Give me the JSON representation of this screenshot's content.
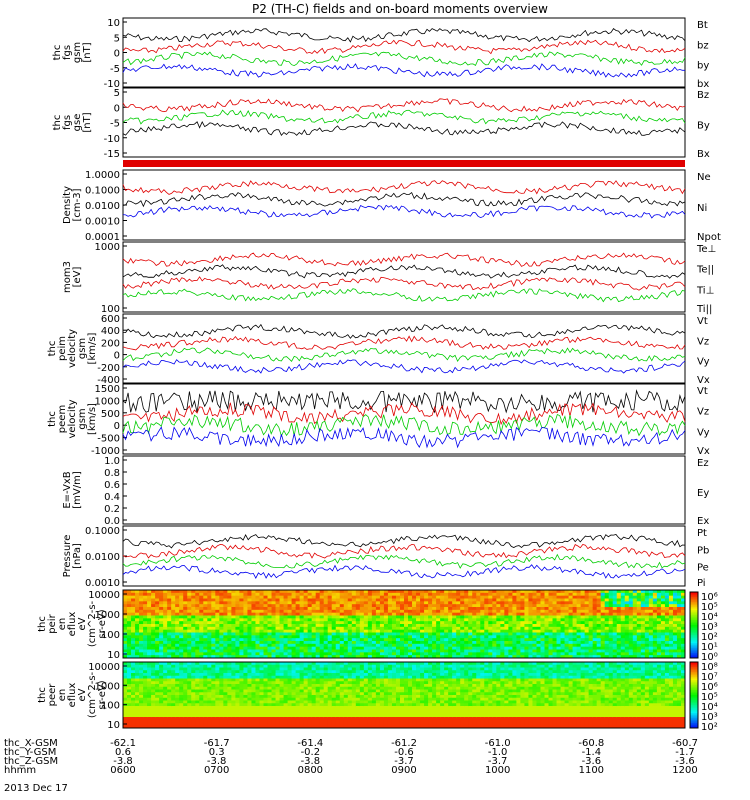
{
  "title": "P2 (TH-C) fields and on-board moments overview",
  "panels": [
    {
      "key": "fgs_gsm",
      "ylabel": [
        "thc",
        "fgs",
        "gsm",
        "[nT]"
      ],
      "ticks": [
        "10",
        "5",
        "0",
        "-5",
        "-10"
      ],
      "legend": [
        {
          "label": "Bt",
          "color": "#000000"
        },
        {
          "label": "bz",
          "color": "#e00000"
        },
        {
          "label": "by",
          "color": "#00cc00"
        },
        {
          "label": "bx",
          "color": "#0000ee"
        }
      ]
    },
    {
      "key": "fgs_gse",
      "ylabel": [
        "thc",
        "fgs",
        "gse",
        "[nT]"
      ],
      "ticks": [
        "5",
        "0",
        "-5",
        "-10",
        "-15"
      ],
      "legend": [
        {
          "label": "Bz",
          "color": "#e00000"
        },
        {
          "label": "By",
          "color": "#00cc00"
        },
        {
          "label": "Bx",
          "color": "#000000"
        }
      ]
    },
    {
      "key": "density",
      "ylabel": [
        "Density",
        "[cm-3]"
      ],
      "ticks": [
        "1.0000",
        "0.1000",
        "0.0100",
        "0.0010",
        "0.0001"
      ],
      "legend": [
        {
          "label": "Ne",
          "color": "#e00000"
        },
        {
          "label": "Ni",
          "color": "#000000"
        },
        {
          "label": "Npot",
          "color": "#0000ee"
        }
      ]
    },
    {
      "key": "temp",
      "ylabel": [
        "mom3",
        "[eV]"
      ],
      "ticks": [
        "1000",
        "100"
      ],
      "legend": [
        {
          "label": "Te⊥",
          "color": "#e00000"
        },
        {
          "label": "Te||",
          "color": "#000000"
        },
        {
          "label": "Ti⊥",
          "color": "#e00000"
        },
        {
          "label": "Ti||",
          "color": "#00cc00"
        }
      ]
    },
    {
      "key": "peim",
      "ylabel": [
        "thc",
        "peim",
        "velocity",
        "gsm",
        "[km/s]"
      ],
      "ticks": [
        "600",
        "400",
        "200",
        "0",
        "-200",
        "-400"
      ],
      "legend": [
        {
          "label": "Vt",
          "color": "#000000"
        },
        {
          "label": "Vz",
          "color": "#e00000"
        },
        {
          "label": "Vy",
          "color": "#00cc00"
        },
        {
          "label": "Vx",
          "color": "#0000ee"
        }
      ]
    },
    {
      "key": "peem",
      "ylabel": [
        "thc",
        "peem",
        "velocity",
        "gsm",
        "[km/s]"
      ],
      "ticks": [
        "1500",
        "1000",
        "500",
        "0",
        "-500",
        "-1000"
      ],
      "legend": [
        {
          "label": "Vt",
          "color": "#000000"
        },
        {
          "label": "Vz",
          "color": "#e00000"
        },
        {
          "label": "Vy",
          "color": "#00cc00"
        },
        {
          "label": "Vx",
          "color": "#0000ee"
        }
      ]
    },
    {
      "key": "efield",
      "ylabel": [
        "E=-VxB",
        "[mV/m]"
      ],
      "ticks": [
        "1.0",
        "0.8",
        "0.6",
        "0.4",
        "0.2",
        "0.0"
      ],
      "legend": [
        {
          "label": "Ez",
          "color": "#e00000"
        },
        {
          "label": "Ey",
          "color": "#00cc00"
        },
        {
          "label": "Ex",
          "color": "#0000ee"
        }
      ]
    },
    {
      "key": "pressure",
      "ylabel": [
        "Pressure",
        "[nPa]"
      ],
      "ticks": [
        "0.1000",
        "0.0100",
        "0.0010"
      ],
      "legend": [
        {
          "label": "Pt",
          "color": "#000000"
        },
        {
          "label": "Pb",
          "color": "#e00000"
        },
        {
          "label": "Pe",
          "color": "#00cc00"
        },
        {
          "label": "Pi",
          "color": "#0000ee"
        }
      ]
    },
    {
      "key": "peir",
      "ylabel": [
        "thc",
        "peir",
        "en",
        "eflux",
        "eV",
        "(cm^2-s-",
        "sr-eV)"
      ],
      "ticks": [
        "10000",
        "1000",
        "100",
        "10"
      ],
      "legend": []
    },
    {
      "key": "peer",
      "ylabel": [
        "thc",
        "peer",
        "en",
        "eflux",
        "eV",
        "(cm^2-s-",
        "sr-eV)"
      ],
      "ticks": [
        "10000",
        "1000",
        "100",
        "10"
      ],
      "legend": []
    }
  ],
  "colorbar1": [
    "10⁶",
    "10⁵",
    "10⁴",
    "10³",
    "10²",
    "10¹",
    "10⁰"
  ],
  "colorbar2": [
    "10⁸",
    "10⁷",
    "10⁶",
    "10⁵",
    "10⁴",
    "10³",
    "10²"
  ],
  "xaxis": {
    "rows": [
      {
        "label": "thc_X-GSM",
        "values": [
          "-62.1",
          "-61.7",
          "-61.4",
          "-61.2",
          "-61.0",
          "-60.8",
          "-60.7"
        ]
      },
      {
        "label": "thc_Y-GSM",
        "values": [
          "0.6",
          "0.3",
          "-0.2",
          "-0.6",
          "-1.0",
          "-1.4",
          "-1.7"
        ]
      },
      {
        "label": "thc_Z-GSM",
        "values": [
          "-3.8",
          "-3.8",
          "-3.8",
          "-3.7",
          "-3.7",
          "-3.6",
          "-3.6"
        ]
      },
      {
        "label": "hhmm",
        "values": [
          "0600",
          "0700",
          "0800",
          "0900",
          "1000",
          "1100",
          "1200"
        ]
      }
    ],
    "date": "2013 Dec 17"
  },
  "chart_data": {
    "type": "line",
    "title": "P2 (TH-C) fields and on-board moments overview",
    "x_time": [
      "0600",
      "0700",
      "0800",
      "0900",
      "1000",
      "1100",
      "1200"
    ],
    "series_summary": [
      {
        "panel": "fgs_gsm",
        "name": "Bt",
        "approx": [
          6,
          8,
          5,
          7,
          5,
          8,
          7
        ]
      },
      {
        "panel": "fgs_gsm",
        "name": "bz",
        "approx": [
          2,
          1,
          1,
          0,
          1,
          1,
          1
        ]
      },
      {
        "panel": "fgs_gsm",
        "name": "by",
        "approx": [
          -3,
          -2,
          -1,
          -1,
          -3,
          -2,
          -1
        ]
      },
      {
        "panel": "fgs_gsm",
        "name": "bx",
        "approx": [
          -5,
          -1,
          -2,
          -1,
          -3,
          -5,
          -4
        ]
      },
      {
        "panel": "density",
        "name": "Ne",
        "approx": [
          0.2,
          0.2,
          0.15,
          0.15,
          0.15,
          0.15,
          0.2
        ]
      },
      {
        "panel": "density",
        "name": "Npot",
        "approx": [
          0.01,
          0.02,
          0.02,
          0.01,
          0.01,
          0.05,
          0.05
        ]
      },
      {
        "panel": "pressure",
        "name": "Pt",
        "approx": [
          0.02,
          0.03,
          0.02,
          0.03,
          0.03,
          0.02,
          0.02
        ]
      }
    ]
  }
}
